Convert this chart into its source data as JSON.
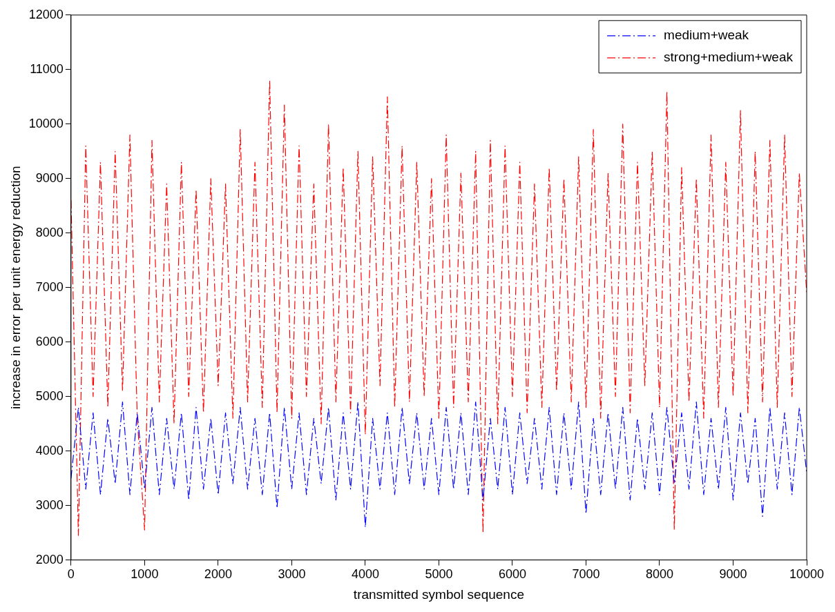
{
  "chart_data": {
    "type": "line",
    "xlabel": "transmitted symbol sequence",
    "ylabel": "increase in error per unit energy reduction",
    "x": [
      0,
      100,
      200,
      300,
      400,
      500,
      600,
      700,
      800,
      900,
      1000,
      1100,
      1200,
      1300,
      1400,
      1500,
      1600,
      1700,
      1800,
      1900,
      2000,
      2100,
      2200,
      2300,
      2400,
      2500,
      2600,
      2700,
      2800,
      2900,
      3000,
      3100,
      3200,
      3300,
      3400,
      3500,
      3600,
      3700,
      3800,
      3900,
      4000,
      4100,
      4200,
      4300,
      4400,
      4500,
      4600,
      4700,
      4800,
      4900,
      5000,
      5100,
      5200,
      5300,
      5400,
      5500,
      5600,
      5700,
      5800,
      5900,
      6000,
      6100,
      6200,
      6300,
      6400,
      6500,
      6600,
      6700,
      6800,
      6900,
      7000,
      7100,
      7200,
      7300,
      7400,
      7500,
      7600,
      7700,
      7800,
      7900,
      8000,
      8100,
      8200,
      8300,
      8400,
      8500,
      8600,
      8700,
      8800,
      8900,
      9000,
      9100,
      9200,
      9300,
      9400,
      9500,
      9600,
      9700,
      9800,
      9900,
      10000
    ],
    "series": [
      {
        "name": "medium+weak",
        "color": "#0000ff",
        "values": [
          3500,
          4800,
          3300,
          4700,
          3200,
          4600,
          3400,
          4900,
          3200,
          4700,
          3300,
          4800,
          3200,
          4600,
          3300,
          4700,
          3100,
          4800,
          3300,
          4600,
          3200,
          4700,
          3400,
          4800,
          3300,
          4600,
          3200,
          4700,
          2950,
          4800,
          3300,
          4700,
          3200,
          4600,
          3400,
          4800,
          3100,
          4700,
          3300,
          4900,
          2600,
          4600,
          3300,
          4700,
          3200,
          4800,
          3400,
          4700,
          3300,
          4600,
          3200,
          4800,
          3300,
          4700,
          3200,
          4900,
          3100,
          4600,
          3300,
          4800,
          3200,
          4700,
          3400,
          4600,
          3300,
          4800,
          3200,
          4700,
          3300,
          4900,
          2850,
          4600,
          3200,
          4700,
          3300,
          4800,
          3100,
          4600,
          3300,
          4700,
          3200,
          4800,
          3400,
          4700,
          3300,
          4900,
          3200,
          4600,
          3300,
          4800,
          3100,
          4700,
          3400,
          4600,
          2800,
          4800,
          3300,
          4700,
          3200,
          4800,
          3600
        ]
      },
      {
        "name": "strong+medium+weak",
        "color": "#ff0000",
        "values": [
          8600,
          2450,
          9600,
          5000,
          9300,
          4800,
          9500,
          5100,
          9800,
          4600,
          2550,
          9700,
          4900,
          8900,
          4500,
          9300,
          5000,
          8800,
          4700,
          9000,
          5200,
          8900,
          4600,
          9900,
          4900,
          9300,
          4800,
          10800,
          4700,
          10350,
          4600,
          9600,
          5000,
          8900,
          4500,
          10000,
          4900,
          9200,
          4700,
          9500,
          4300,
          9400,
          5200,
          10500,
          4800,
          9600,
          4900,
          9300,
          5000,
          9000,
          4600,
          9800,
          4800,
          9100,
          4900,
          9500,
          2500,
          9700,
          4500,
          9600,
          5000,
          9300,
          4700,
          8900,
          4800,
          9200,
          5100,
          9000,
          4900,
          9400,
          4800,
          9900,
          4600,
          9100,
          5000,
          10000,
          4700,
          9300,
          5200,
          9500,
          4800,
          10600,
          2550,
          9200,
          4900,
          9000,
          4600,
          9800,
          4800,
          9300,
          5000,
          10250,
          4700,
          9500,
          4900,
          9700,
          4800,
          9800,
          5000,
          9100,
          6900
        ]
      }
    ],
    "xlim": [
      0,
      10000
    ],
    "xticks": [
      0,
      1000,
      2000,
      3000,
      4000,
      5000,
      6000,
      7000,
      8000,
      9000,
      10000
    ],
    "ylim": [
      2000,
      12000
    ],
    "yticks": [
      2000,
      3000,
      4000,
      5000,
      6000,
      7000,
      8000,
      9000,
      10000,
      11000,
      12000
    ],
    "grid": false,
    "legend": "top right",
    "line_style": "dashed",
    "marker": "none"
  }
}
